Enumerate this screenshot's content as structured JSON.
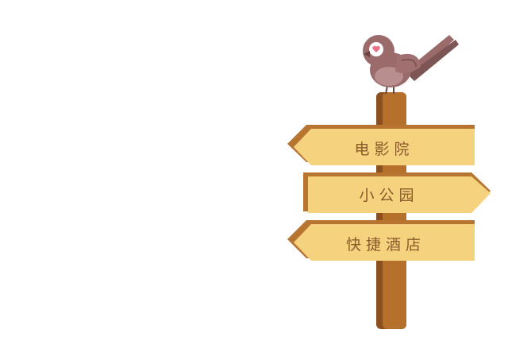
{
  "colors": {
    "background": "#ffffff",
    "post_light": "#b5712c",
    "post_dark": "#8a5020",
    "sign_face": "#f4d27e",
    "sign_edge": "#b87532",
    "sign_text": "#8c5a2b",
    "bird_body": "#9b6b6b",
    "bird_wing": "#a07070",
    "bird_belly": "#b88e8e",
    "bird_eye_ring": "#ffffff",
    "heart": "#e8718a",
    "beak": "#6a4242"
  },
  "signs": [
    {
      "label": "电影院",
      "direction": "left"
    },
    {
      "label": "小公园",
      "direction": "right"
    },
    {
      "label": "快捷酒店",
      "direction": "left"
    }
  ],
  "decor": {
    "bird_icon": "bird-icon",
    "heart_icon": "heart-icon"
  }
}
